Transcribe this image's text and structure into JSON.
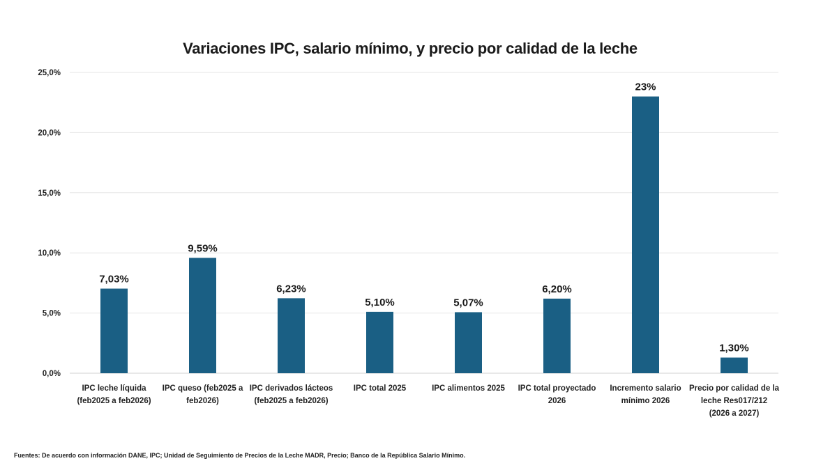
{
  "chart_data": {
    "type": "bar",
    "title": "Variaciones IPC, salario mínimo, y precio por calidad de la leche",
    "categories": [
      [
        "IPC leche líquida",
        "(feb2025 a feb2026)"
      ],
      [
        "IPC queso (feb2025 a",
        "feb2026)"
      ],
      [
        "IPC derivados lácteos",
        "(feb2025 a feb2026)"
      ],
      [
        "IPC total 2025"
      ],
      [
        "IPC alimentos 2025"
      ],
      [
        "IPC total proyectado",
        "2026"
      ],
      [
        "Incremento salario",
        "mínimo 2026"
      ],
      [
        "Precio por calidad de la",
        "leche Res017/212",
        "(2026 a 2027)"
      ]
    ],
    "values": [
      7.03,
      9.59,
      6.23,
      5.1,
      5.07,
      6.2,
      23.0,
      1.3
    ],
    "data_labels": [
      "7,03%",
      "9,59%",
      "6,23%",
      "5,10%",
      "5,07%",
      "6,20%",
      "23%",
      "1,30%"
    ],
    "ylim": [
      0,
      25
    ],
    "yticks": [
      0,
      5,
      10,
      15,
      20,
      25
    ],
    "ytick_labels": [
      "0,0%",
      "5,0%",
      "10,0%",
      "15,0%",
      "20,0%",
      "25,0%"
    ],
    "xlabel": "",
    "ylabel": "",
    "grid": true,
    "bar_color": "#1a5f84",
    "grid_color": "#e6e6e6"
  },
  "footer": {
    "source": "Fuentes: De acuerdo con información DANE, IPC; Unidad de Seguimiento de Precios de la Leche MADR, Precio; Banco de la República Salario Mínimo."
  }
}
